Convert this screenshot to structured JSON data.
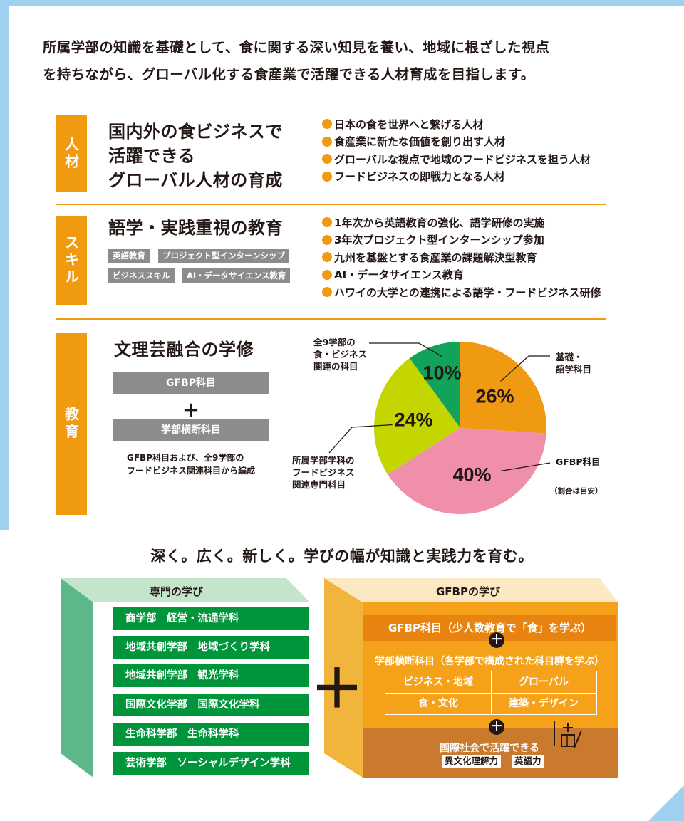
{
  "intro": {
    "line1": "所属学部の知識を基礎として、食に関する深い知見を養い、地域に根ざした視点",
    "line2": "を持ちながら、グローバル化する食産業で活躍できる人材育成を目指します。"
  },
  "sections": {
    "jinzai": {
      "tab": "人材",
      "heading": [
        "国内外の食ビジネスで",
        "活躍できる",
        "グローバル人材の育成"
      ],
      "bullets": [
        "日本の食を世界へと繋げる人材",
        "食産業に新たな価値を創り出す人材",
        "グローバルな視点で地域のフードビジネスを担う人材",
        "フードビジネスの即戦力となる人材"
      ]
    },
    "skill": {
      "tab": "スキル",
      "heading": "語学・実践重視の教育",
      "tags": [
        "英語教育",
        "プロジェクト型インターンシップ",
        "ビジネススキル",
        "AI・データサイエンス教育"
      ],
      "bullets": [
        "1年次から英語教育の強化、語学研修の実施",
        "3年次プロジェクト型インターンシップ参加",
        "九州を基盤とする食産業の課題解決型教育",
        "AI・データサイエンス教育",
        "ハワイの大学との連携による語学・フードビジネス研修"
      ]
    },
    "kyoiku": {
      "tab": "教育",
      "heading": "文理芸融合の学修",
      "bar1": "GFBP科目",
      "plus": "＋",
      "bar2": "学部横断科目",
      "note": [
        "GFBP科目および、全9学部の",
        "フードビジネス関連科目から編成"
      ]
    }
  },
  "chart_data": {
    "type": "pie",
    "slices": [
      {
        "label": "基礎・語学科目",
        "value": 26,
        "display": "26%",
        "color": "#f09a12"
      },
      {
        "label": "GFBP科目",
        "value": 40,
        "display": "40%",
        "color": "#ef8fa9"
      },
      {
        "label": "所属学部学科のフードビジネス関連専門科目",
        "value": 24,
        "display": "24%",
        "color": "#c4d600"
      },
      {
        "label": "全9学部の食・ビジネス関連の科目",
        "value": 10,
        "display": "10%",
        "color": "#12a35a"
      }
    ],
    "labels": {
      "kiso": [
        "基礎・",
        "語学科目"
      ],
      "gfbp": "GFBP科目",
      "shozoku": [
        "所属学部学科の",
        "フードビジネス",
        "関連専門科目"
      ],
      "zen9": [
        "全9学部の",
        "食・ビジネス",
        "関連の科目"
      ]
    },
    "note": "（割合は目安）"
  },
  "subhead": "深く。広く。新しく。学びの幅が知識と実践力を育む。",
  "senmon": {
    "title": "専門の学び",
    "rows": [
      "商学部　経営・流通学科",
      "地域共創学部　地域づくり学科",
      "地域共創学部　観光学科",
      "国際文化学部　国際文化学科",
      "生命科学部　生命科学科",
      "芸術学部　ソーシャルデザイン学科"
    ]
  },
  "gfbp": {
    "title": "GFBPの学び",
    "bar": "GFBP科目（少人数教育で「食」を学ぶ）",
    "sub": "学部横断科目（各学部で構成された科目群を学ぶ）",
    "cells": [
      "ビジネス・地域",
      "グローバル",
      "食・文化",
      "建築・デザイン"
    ],
    "kokusai": "国際社会で活躍できる",
    "ktags": [
      "異文化理解力",
      "英語力"
    ],
    "plus": "＋",
    "big_plus": "＋"
  },
  "colors": {
    "orange": "#f09a12",
    "green": "#00953b",
    "frame": "#9fd0ef"
  }
}
